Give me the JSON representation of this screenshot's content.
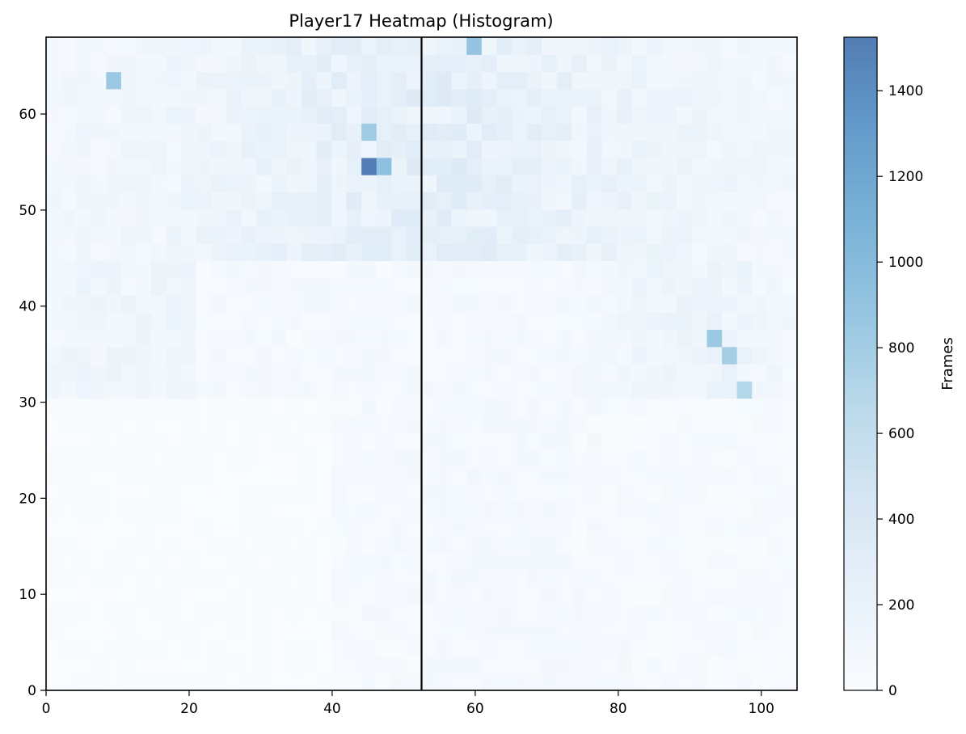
{
  "chart_data": {
    "type": "heatmap",
    "title": "Player17 Heatmap (Histogram)",
    "xlabel": "",
    "ylabel": "",
    "xlim": [
      0,
      105
    ],
    "ylim": [
      0,
      68
    ],
    "grid": false,
    "x_ticks": [
      0,
      20,
      40,
      60,
      80,
      100
    ],
    "y_ticks": [
      0,
      10,
      20,
      30,
      40,
      50,
      60
    ],
    "colorbar": {
      "label": "Frames",
      "range": [
        0,
        1525
      ],
      "ticks": [
        0,
        200,
        400,
        600,
        800,
        1000,
        1200,
        1400
      ],
      "colors": [
        "#f7fbff",
        "#deebf7",
        "#c6dbef",
        "#9ecae1",
        "#6baed6",
        "#4292c6",
        "#2171b5",
        "#084594"
      ],
      "alpha": 0.7
    },
    "bins": {
      "nx": 50,
      "ny": 38
    },
    "halfway_line_x": 52.5,
    "sample_hotspots": [
      {
        "x": 45.2,
        "y": 55.0,
        "value": 1520
      },
      {
        "x": 59.8,
        "y": 67.0,
        "value": 900
      },
      {
        "x": 9.5,
        "y": 63.0,
        "value": 850
      },
      {
        "x": 47.5,
        "y": 55.0,
        "value": 950
      },
      {
        "x": 45.2,
        "y": 57.3,
        "value": 820
      },
      {
        "x": 93.6,
        "y": 37.0,
        "value": 850
      },
      {
        "x": 95.6,
        "y": 35.0,
        "value": 800
      },
      {
        "x": 97.7,
        "y": 31.0,
        "value": 700
      }
    ]
  }
}
